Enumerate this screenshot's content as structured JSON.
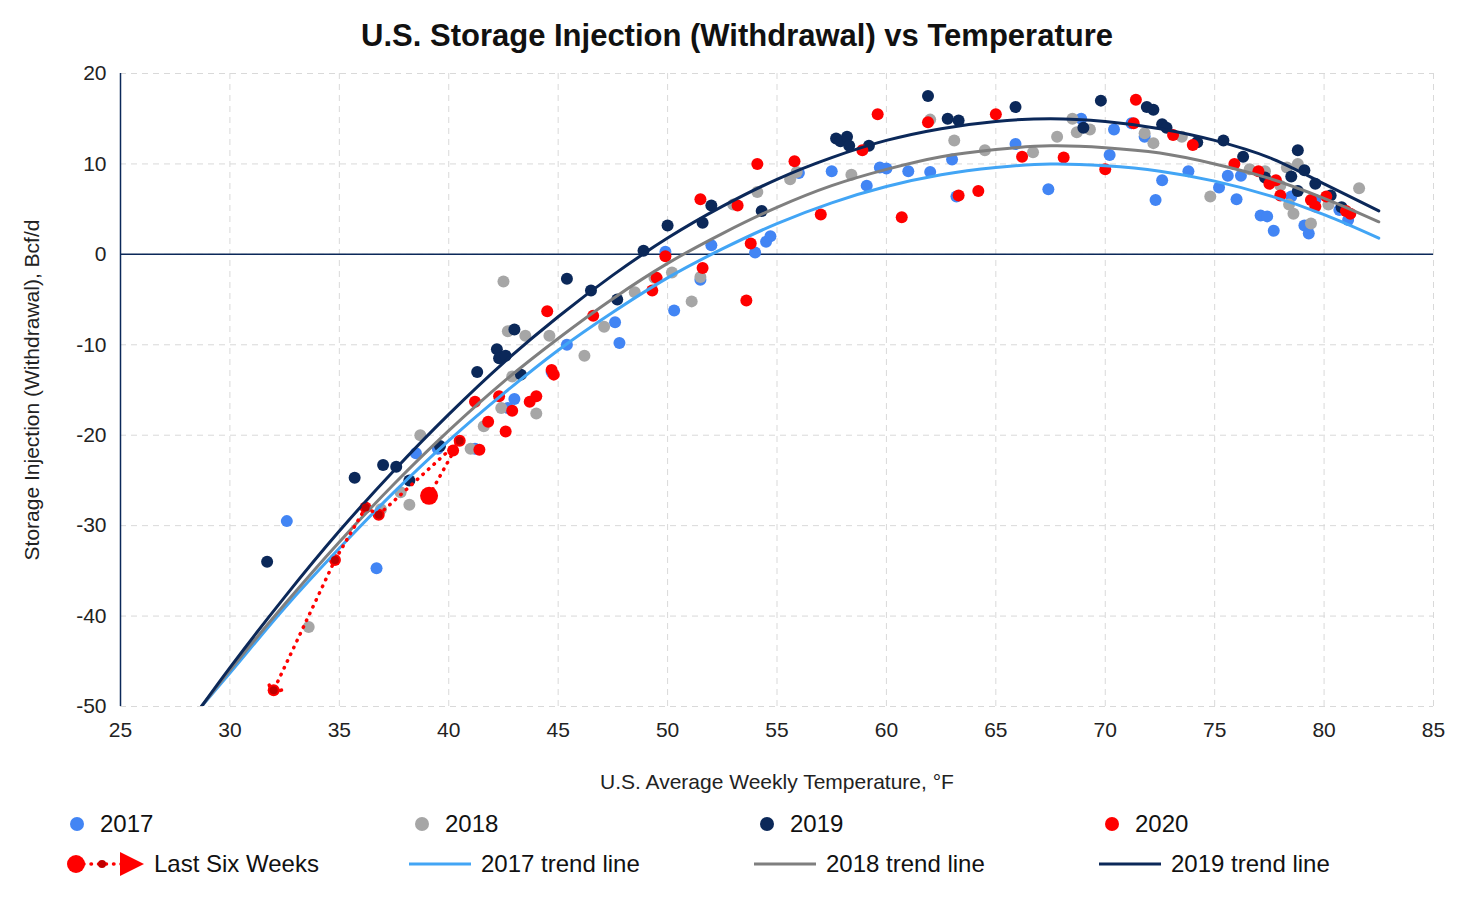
{
  "chart_data": {
    "type": "scatter",
    "title": "U.S. Storage Injection (Withdrawal) vs Temperature",
    "x_label": "U.S. Average Weekly Temperature, °F",
    "y_label": "Storage Injection (Withdrawal), Bcf/d",
    "xlim": [
      25,
      85
    ],
    "xticks": [
      25,
      30,
      35,
      40,
      45,
      50,
      55,
      60,
      65,
      70,
      75,
      80,
      85
    ],
    "ylim": [
      -50,
      20
    ],
    "yticks": [
      -50,
      -40,
      -30,
      -20,
      -10,
      0,
      10,
      20
    ],
    "grid": true,
    "legend": "bottom",
    "series": [
      {
        "name": "2017",
        "type": "scatter",
        "marker": "dot",
        "color": "#4285f4",
        "x": [
          32.6,
          36.7,
          38.5,
          39.5,
          41.2,
          42.7,
          43,
          44.7,
          45.4,
          47.6,
          47.8,
          49.9,
          50.3,
          51.5,
          52,
          54,
          54.5,
          54.7,
          56,
          57.5,
          59.1,
          59.7,
          60,
          61,
          62,
          63,
          63.2,
          65.9,
          67.4,
          68.9,
          70.2,
          70.4,
          71.2,
          71.8,
          72.3,
          72.6,
          73.8,
          75.2,
          75.6,
          76,
          76.2,
          77.1,
          77.4,
          77.7,
          78.5,
          79.1,
          79.3,
          80.7,
          81.1,
          79.6
        ],
        "values": [
          -29.5,
          -34.7,
          -22,
          -21.5,
          -21.5,
          -17,
          -16,
          -13,
          -10,
          -7.5,
          -9.8,
          0.3,
          -6.2,
          -2.8,
          1,
          0.2,
          1.4,
          2,
          9,
          9.2,
          7.6,
          9.6,
          9.5,
          9.2,
          9.1,
          10.5,
          6.4,
          12.2,
          7.2,
          15,
          11,
          13.8,
          14.5,
          13,
          6,
          8.2,
          9.2,
          7.4,
          8.7,
          6.1,
          8.7,
          4.3,
          4.2,
          2.6,
          6.4,
          3.2,
          2.3,
          4.9,
          3.8,
          6
        ]
      },
      {
        "name": "2018",
        "type": "scatter",
        "marker": "dot",
        "color": "#a6a6a6",
        "x": [
          33.6,
          36.9,
          37.8,
          38.2,
          38.7,
          39.2,
          41,
          41.6,
          42.4,
          42.5,
          42.7,
          42.9,
          43.5,
          44,
          44.6,
          46.2,
          47.1,
          48.5,
          49.4,
          50.2,
          51.1,
          51.5,
          53,
          54.1,
          55.6,
          55.9,
          58.4,
          62,
          63.1,
          64.5,
          66.7,
          67.8,
          68.5,
          68.7,
          69.3,
          71.8,
          72.2,
          73.5,
          74.2,
          74.8,
          76.6,
          77.3,
          78,
          78.3,
          78.4,
          78.6,
          79.4,
          80.2,
          81.6,
          78.8
        ],
        "values": [
          -41.2,
          -28.2,
          -26.3,
          -27.7,
          -20,
          -26.5,
          -21.5,
          -19,
          -17,
          -3,
          -8.5,
          -13.5,
          -9,
          -17.6,
          -9,
          -11.2,
          -8,
          -4.2,
          -2.6,
          -2,
          -5.2,
          -2.5,
          5.5,
          6.9,
          8.3,
          9.1,
          8.8,
          14.9,
          12.6,
          11.5,
          11.3,
          13,
          15,
          13.5,
          13.8,
          13.4,
          12.3,
          13,
          12.4,
          6.4,
          9.4,
          9.2,
          7.6,
          9.6,
          5.5,
          4.5,
          3.4,
          5.5,
          7.3,
          10
        ]
      },
      {
        "name": "2019",
        "type": "scatter",
        "marker": "dot",
        "color": "#0b2859",
        "x": [
          31.7,
          35.7,
          37,
          37.6,
          38.2,
          39.6,
          41.3,
          42.2,
          42.3,
          42.6,
          43,
          43.3,
          45.4,
          46.5,
          47.7,
          48.9,
          50,
          51.6,
          52,
          54.3,
          57.7,
          57.9,
          58.2,
          58.3,
          59.2,
          61.9,
          62.8,
          63.3,
          65.9,
          69,
          69.8,
          71.9,
          72.2,
          72.6,
          72.8,
          74.2,
          75.4,
          76.3,
          77.3,
          78.5,
          78.8,
          78.8,
          79.1,
          79.6,
          80.3,
          80.8
        ],
        "values": [
          -34,
          -24.7,
          -23.3,
          -23.5,
          -25,
          -21.2,
          -13,
          -10.5,
          -11.5,
          -11.2,
          -8.3,
          -13.3,
          -2.7,
          -4,
          -5,
          0.4,
          3.2,
          3.5,
          5.4,
          4.8,
          12.8,
          12.5,
          13,
          12,
          12,
          17.5,
          15,
          14.8,
          16.3,
          14,
          17,
          16.3,
          16,
          14.4,
          14,
          12.4,
          12.6,
          10.8,
          8.5,
          8.6,
          11.5,
          7,
          9.3,
          7.8,
          6.5,
          5.2
        ]
      },
      {
        "name": "2020",
        "type": "scatter",
        "marker": "dot",
        "color": "#ff0000",
        "x": [
          32,
          34.8,
          36.2,
          36.8,
          39.1,
          40.2,
          40.5,
          41.2,
          41.4,
          41.8,
          42.3,
          42.6,
          42.9,
          43.7,
          44,
          44.5,
          44.7,
          44.8,
          46.6,
          49.3,
          49.5,
          49.9,
          51.5,
          51.6,
          53.2,
          53.6,
          53.8,
          54.1,
          55.8,
          57,
          58.9,
          59.6,
          60.7,
          61.9,
          63.3,
          64.2,
          65,
          66.2,
          68.1,
          70,
          71.3,
          71.4,
          73.1,
          74,
          75.9,
          77,
          77.5,
          77.8,
          78,
          79.4,
          79.6,
          80.1,
          81,
          81.2
        ],
        "values": [
          -48.2,
          -33.8,
          -28,
          -28.8,
          -26.7,
          -21.7,
          -20.6,
          -16.3,
          -21.6,
          -18.5,
          -15.7,
          -19.6,
          -17.3,
          -16.3,
          -15.7,
          -6.3,
          -12.8,
          -13.3,
          -6.8,
          -4,
          -2.6,
          -0.2,
          6.1,
          -1.5,
          5.4,
          -5.1,
          1.2,
          10,
          10.3,
          4.4,
          11.5,
          15.5,
          4.1,
          14.6,
          6.5,
          7,
          15.5,
          10.8,
          10.7,
          9.4,
          14.5,
          17.1,
          13.2,
          12.1,
          10,
          9.2,
          7.8,
          8.2,
          6.5,
          6,
          5.3,
          6.4,
          4.8,
          4.5
        ]
      },
      {
        "name": "Last Six Weeks",
        "type": "line",
        "marker": "arrow",
        "line_style": "dotted",
        "color": "#ff0000",
        "x": [
          39.1,
          40.5,
          36.8,
          36.2,
          34.8,
          32
        ],
        "values": [
          -26.7,
          -20.6,
          -28.8,
          -28,
          -33.8,
          -48.2
        ]
      },
      {
        "name": "2017 trend line",
        "type": "line",
        "line_style": "solid",
        "color": "#42a5f5",
        "x": [
          28.7,
          30,
          32.5,
          35,
          37.5,
          40,
          42.5,
          45,
          47.5,
          50,
          52.5,
          55,
          57.5,
          60,
          62.5,
          65,
          67.5,
          70,
          72.5,
          75,
          77.5,
          80,
          82.5
        ],
        "values": [
          -50,
          -46.3,
          -39.1,
          -32.5,
          -26.3,
          -20.6,
          -15.4,
          -10.6,
          -6.4,
          -2.6,
          0.6,
          3.4,
          5.7,
          7.5,
          8.8,
          9.6,
          10,
          9.8,
          9.2,
          8.1,
          6.5,
          4.4,
          1.8
        ]
      },
      {
        "name": "2018 trend line",
        "type": "line",
        "line_style": "solid",
        "color": "#7f7f7f",
        "x": [
          28.7,
          30,
          32.5,
          35,
          37.5,
          40,
          42.5,
          45,
          47.5,
          50,
          52.5,
          55,
          57.5,
          60,
          62.5,
          65,
          67.5,
          70,
          72.5,
          75,
          77.5,
          80,
          82.5
        ],
        "values": [
          -50,
          -46,
          -38.7,
          -31.8,
          -25.4,
          -19.5,
          -14.1,
          -9.3,
          -4.9,
          -1,
          2.3,
          5.2,
          7.6,
          9.4,
          10.8,
          11.6,
          12,
          11.8,
          11.2,
          10,
          8.4,
          6.2,
          3.6
        ]
      },
      {
        "name": "2019 trend line",
        "type": "line",
        "line_style": "solid",
        "color": "#0b2859",
        "x": [
          28.7,
          30,
          32.5,
          35,
          37.5,
          40,
          42.5,
          45,
          47.5,
          50,
          52.5,
          55,
          57.5,
          60,
          62.5,
          65,
          67.5,
          70,
          72.5,
          75,
          77.5,
          80,
          82.5
        ],
        "values": [
          -50,
          -45.7,
          -37.9,
          -30.6,
          -23.9,
          -17.7,
          -12,
          -6.9,
          -2.3,
          1.8,
          5.3,
          8.3,
          10.7,
          12.6,
          13.9,
          14.7,
          15,
          14.7,
          13.9,
          12.6,
          10.7,
          7.8,
          4.8
        ]
      }
    ]
  }
}
